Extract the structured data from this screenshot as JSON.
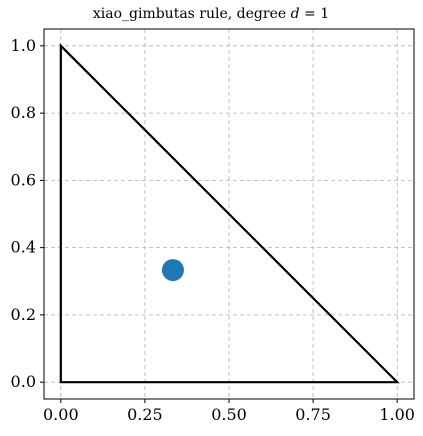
{
  "chart_data": {
    "type": "scatter",
    "title": "xiao_gimbutas rule, degree d = 1",
    "title_parts": {
      "prefix": "xiao_gimbutas rule, degree ",
      "var": "d",
      "suffix": " = 1"
    },
    "xlabel": "",
    "ylabel": "",
    "xlim": [
      -0.05,
      1.05
    ],
    "ylim": [
      -0.05,
      1.05
    ],
    "x_ticks": [
      0.0,
      0.25,
      0.5,
      0.75,
      1.0
    ],
    "x_tick_labels": [
      "0.00",
      "0.25",
      "0.50",
      "0.75",
      "1.00"
    ],
    "y_ticks": [
      0.0,
      0.2,
      0.4,
      0.6,
      0.8,
      1.0
    ],
    "y_tick_labels": [
      "0.0",
      "0.2",
      "0.4",
      "0.6",
      "0.8",
      "1.0"
    ],
    "grid": true,
    "triangle": [
      [
        0,
        0
      ],
      [
        1,
        0
      ],
      [
        0,
        1
      ]
    ],
    "points": [
      {
        "x": 0.3333,
        "y": 0.3333
      }
    ],
    "point_color": "#1f77b4",
    "line_color": "#000000"
  }
}
